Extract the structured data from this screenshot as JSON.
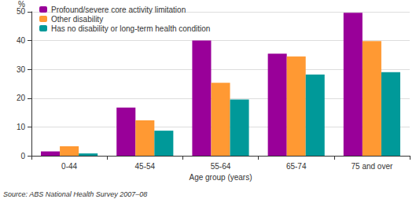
{
  "chart_data": {
    "type": "bar",
    "x_label": "Age group (years)",
    "y_label": "%",
    "annotations": [
      "Source: ABS National Health Survey 2007–08"
    ],
    "categories": [
      "0-44",
      "45-54",
      "55-64",
      "65-74",
      "75 and over"
    ],
    "series": [
      {
        "name": "Profound/severe core activity limitation",
        "color": "#990099",
        "values": [
          1.5,
          16.7,
          40,
          35.4,
          49.6
        ]
      },
      {
        "name": "Other disability",
        "color": "#ff9933",
        "values": [
          3.3,
          12.3,
          25.3,
          34.5,
          39.8
        ]
      },
      {
        "name": "Has no disability or long-term health condition",
        "color": "#009999",
        "values": [
          0.8,
          8.7,
          19.5,
          28.2,
          29
        ]
      }
    ],
    "ylim": [
      0,
      50
    ],
    "yticks": [
      0,
      10,
      20,
      30,
      40,
      50
    ],
    "grid": true,
    "legend": "upper left"
  }
}
